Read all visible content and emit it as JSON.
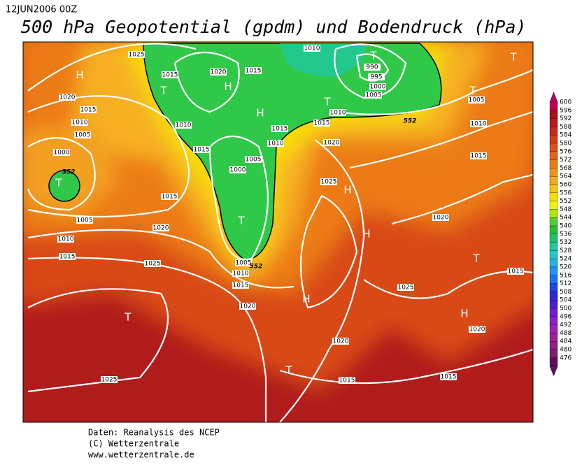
{
  "header": {
    "date": "12JUN2006 00Z",
    "title": "500 hPa Geopotential (gpdm) und Bodendruck (hPa)"
  },
  "map": {
    "isobar_labels": [
      "1025",
      "1015",
      "1020",
      "1015",
      "1010",
      "990",
      "995",
      "1000",
      "1005",
      "1020",
      "1015",
      "1010",
      "1005",
      "1010",
      "1015",
      "1015",
      "1010",
      "1010",
      "1015",
      "1020",
      "1005",
      "1000",
      "1000",
      "1025",
      "1005",
      "1010",
      "1015",
      "1015",
      "1005",
      "1020",
      "1010",
      "1015",
      "1025",
      "1005",
      "1010",
      "1015",
      "1020",
      "1020",
      "1015",
      "1025",
      "1020",
      "1020",
      "1025",
      "1015",
      "1015"
    ],
    "height_labels": [
      "552",
      "552",
      "552"
    ],
    "pressure_centers": [
      "T",
      "H",
      "T",
      "T",
      "H",
      "H",
      "T",
      "T",
      "T",
      "T",
      "H",
      "H",
      "T",
      "H",
      "H",
      "T",
      "T"
    ]
  },
  "legend": {
    "levels": [
      600,
      596,
      592,
      588,
      584,
      580,
      576,
      572,
      568,
      564,
      560,
      556,
      552,
      548,
      544,
      540,
      536,
      532,
      528,
      524,
      520,
      516,
      512,
      508,
      504,
      500,
      496,
      492,
      488,
      484,
      480,
      476
    ],
    "colors": [
      "#c8005a",
      "#a8101c",
      "#b81c1c",
      "#c82818",
      "#d43c18",
      "#dc5018",
      "#e46418",
      "#ec7a18",
      "#f29020",
      "#f6a820",
      "#f8c410",
      "#f8e000",
      "#f0f400",
      "#b0e800",
      "#50d030",
      "#20c030",
      "#20c068",
      "#20c8a0",
      "#20c8cc",
      "#20b4e8",
      "#2094f4",
      "#2070f0",
      "#2048e0",
      "#3028d0",
      "#4c20d0",
      "#6c20d0",
      "#8c20c8",
      "#a020b8",
      "#a0209c",
      "#902088",
      "#802070",
      "#601060"
    ]
  },
  "footer": {
    "lines": [
      "Daten: Reanalysis des NCEP",
      "(C) Wetterzentrale",
      "www.wetterzentrale.de"
    ]
  }
}
